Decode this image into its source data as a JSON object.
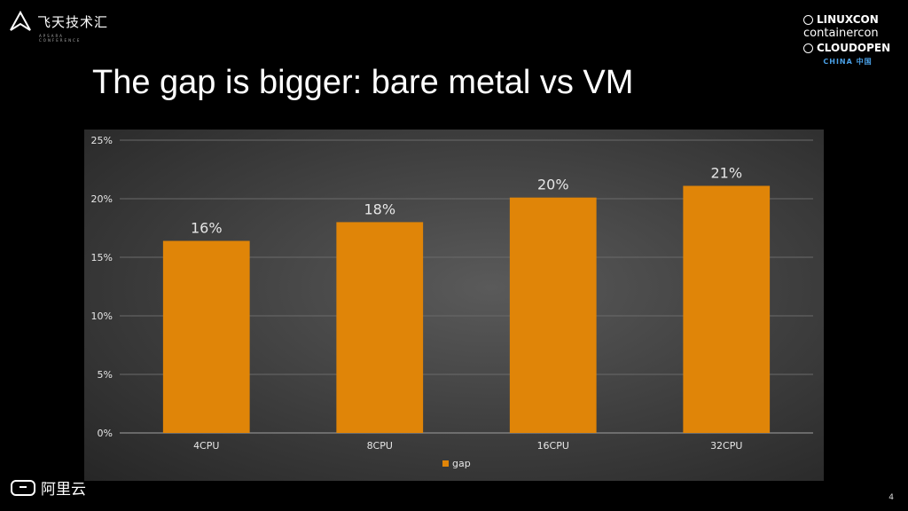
{
  "header": {
    "brand_left": "飞天技术汇",
    "brand_left_sub": "APSARA CONFERENCE",
    "brand_right": {
      "line1": "LINUXCON",
      "line2": "containercon",
      "line3": "CLOUDOPEN",
      "region": "CHINA 中国"
    }
  },
  "slide": {
    "title": "The gap is bigger: bare metal vs VM",
    "page_number": "4"
  },
  "footer": {
    "brand": "阿里云"
  },
  "colors": {
    "bar": "#e08508",
    "label": "#e6e6e6",
    "grid": "#6a6a6a"
  },
  "chart_data": {
    "type": "bar",
    "categories": [
      "4CPU",
      "8CPU",
      "16CPU",
      "32CPU"
    ],
    "series": [
      {
        "name": "gap",
        "values": [
          16.4,
          18.0,
          20.1,
          21.1
        ]
      }
    ],
    "data_labels": [
      "16%",
      "18%",
      "20%",
      "21%"
    ],
    "y_ticks": [
      "0%",
      "5%",
      "10%",
      "15%",
      "20%",
      "25%"
    ],
    "ylim": [
      0,
      25
    ],
    "y_step": 5,
    "grid": true,
    "legend_position": "bottom"
  }
}
